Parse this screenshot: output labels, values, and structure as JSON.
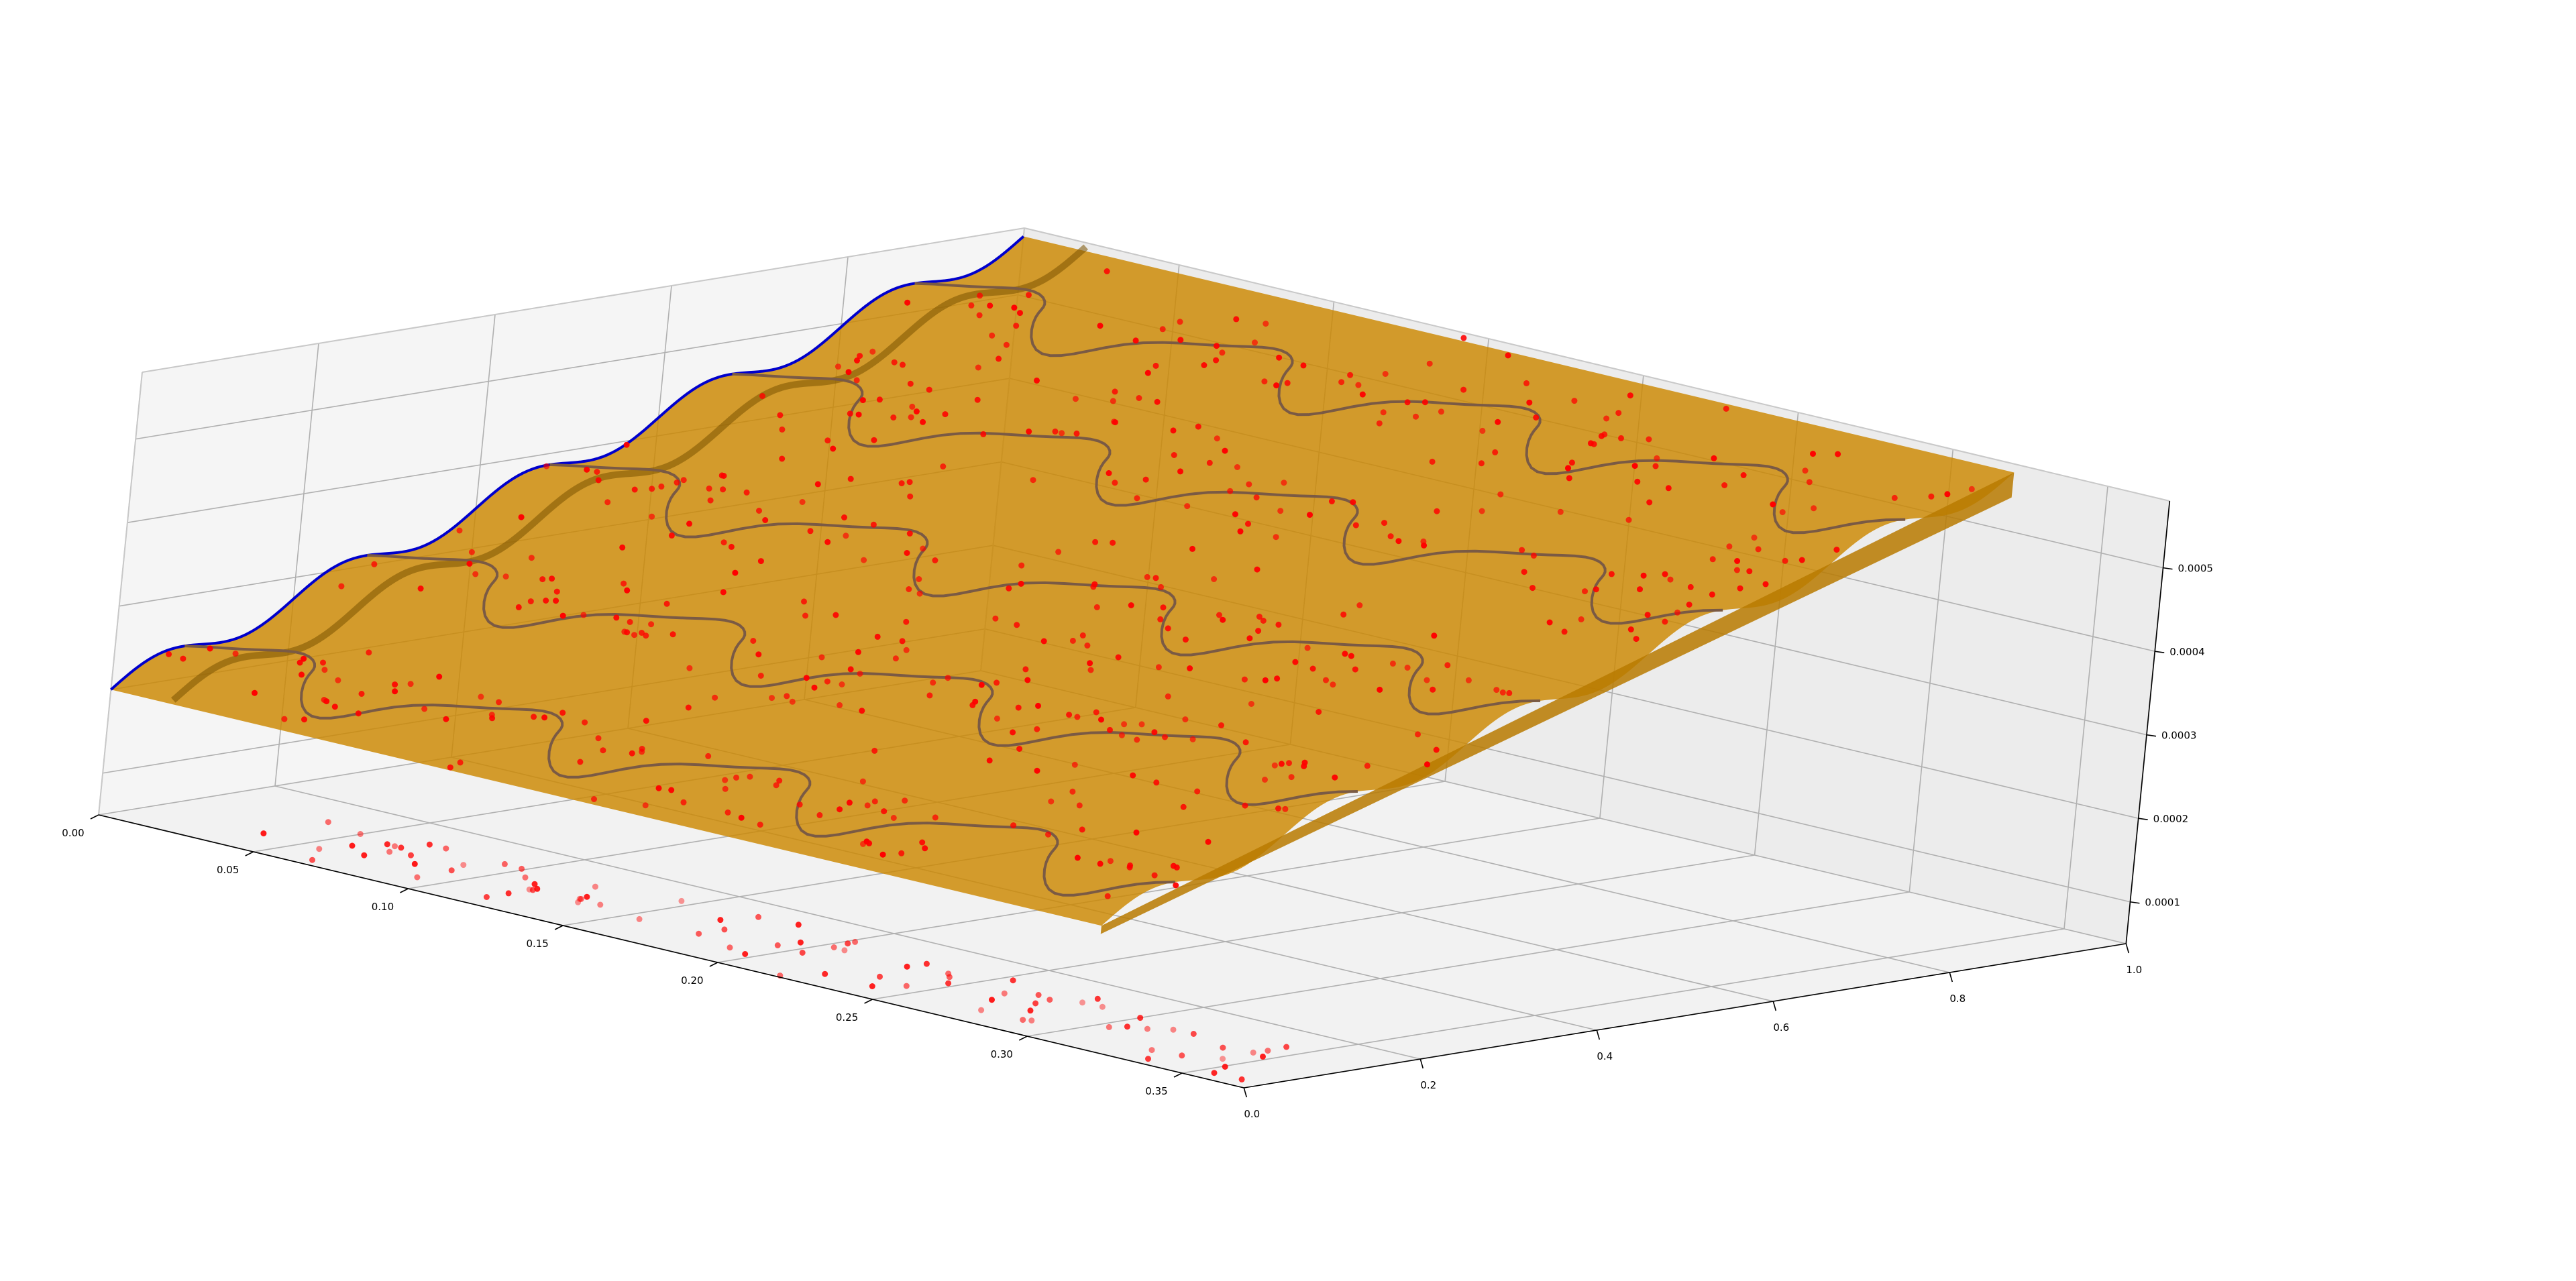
{
  "chart_data": {
    "type": "surface3d",
    "title": "",
    "xlabel": "",
    "ylabel": "",
    "zlabel": "",
    "grid": true,
    "x_ticks": [
      "0.00",
      "0.05",
      "0.10",
      "0.15",
      "0.20",
      "0.25",
      "0.30",
      "0.35"
    ],
    "y_ticks": [
      "0.0",
      "0.2",
      "0.4",
      "0.6",
      "0.8",
      "1.0"
    ],
    "z_ticks": [
      "0.0001",
      "0.0002",
      "0.0003",
      "0.0004",
      "0.0005"
    ],
    "xlim": [
      0.0,
      0.38
    ],
    "ylim": [
      0.0,
      1.0
    ],
    "zlim": [
      5e-05,
      0.00058
    ],
    "surface": {
      "color": "#cc8800",
      "description_values": {
        "z_at_x0_y0": 0.0002,
        "z_at_x0_y1": 0.00057,
        "slope_z_per_y": 0.00037,
        "ripple_amplitude": 1.5e-05,
        "ripple_periods": 5
      }
    },
    "curve_color": "#7a5a44",
    "edge_curve_color": "#0000cc",
    "points_color": "#ff0000",
    "n_points": 520
  }
}
